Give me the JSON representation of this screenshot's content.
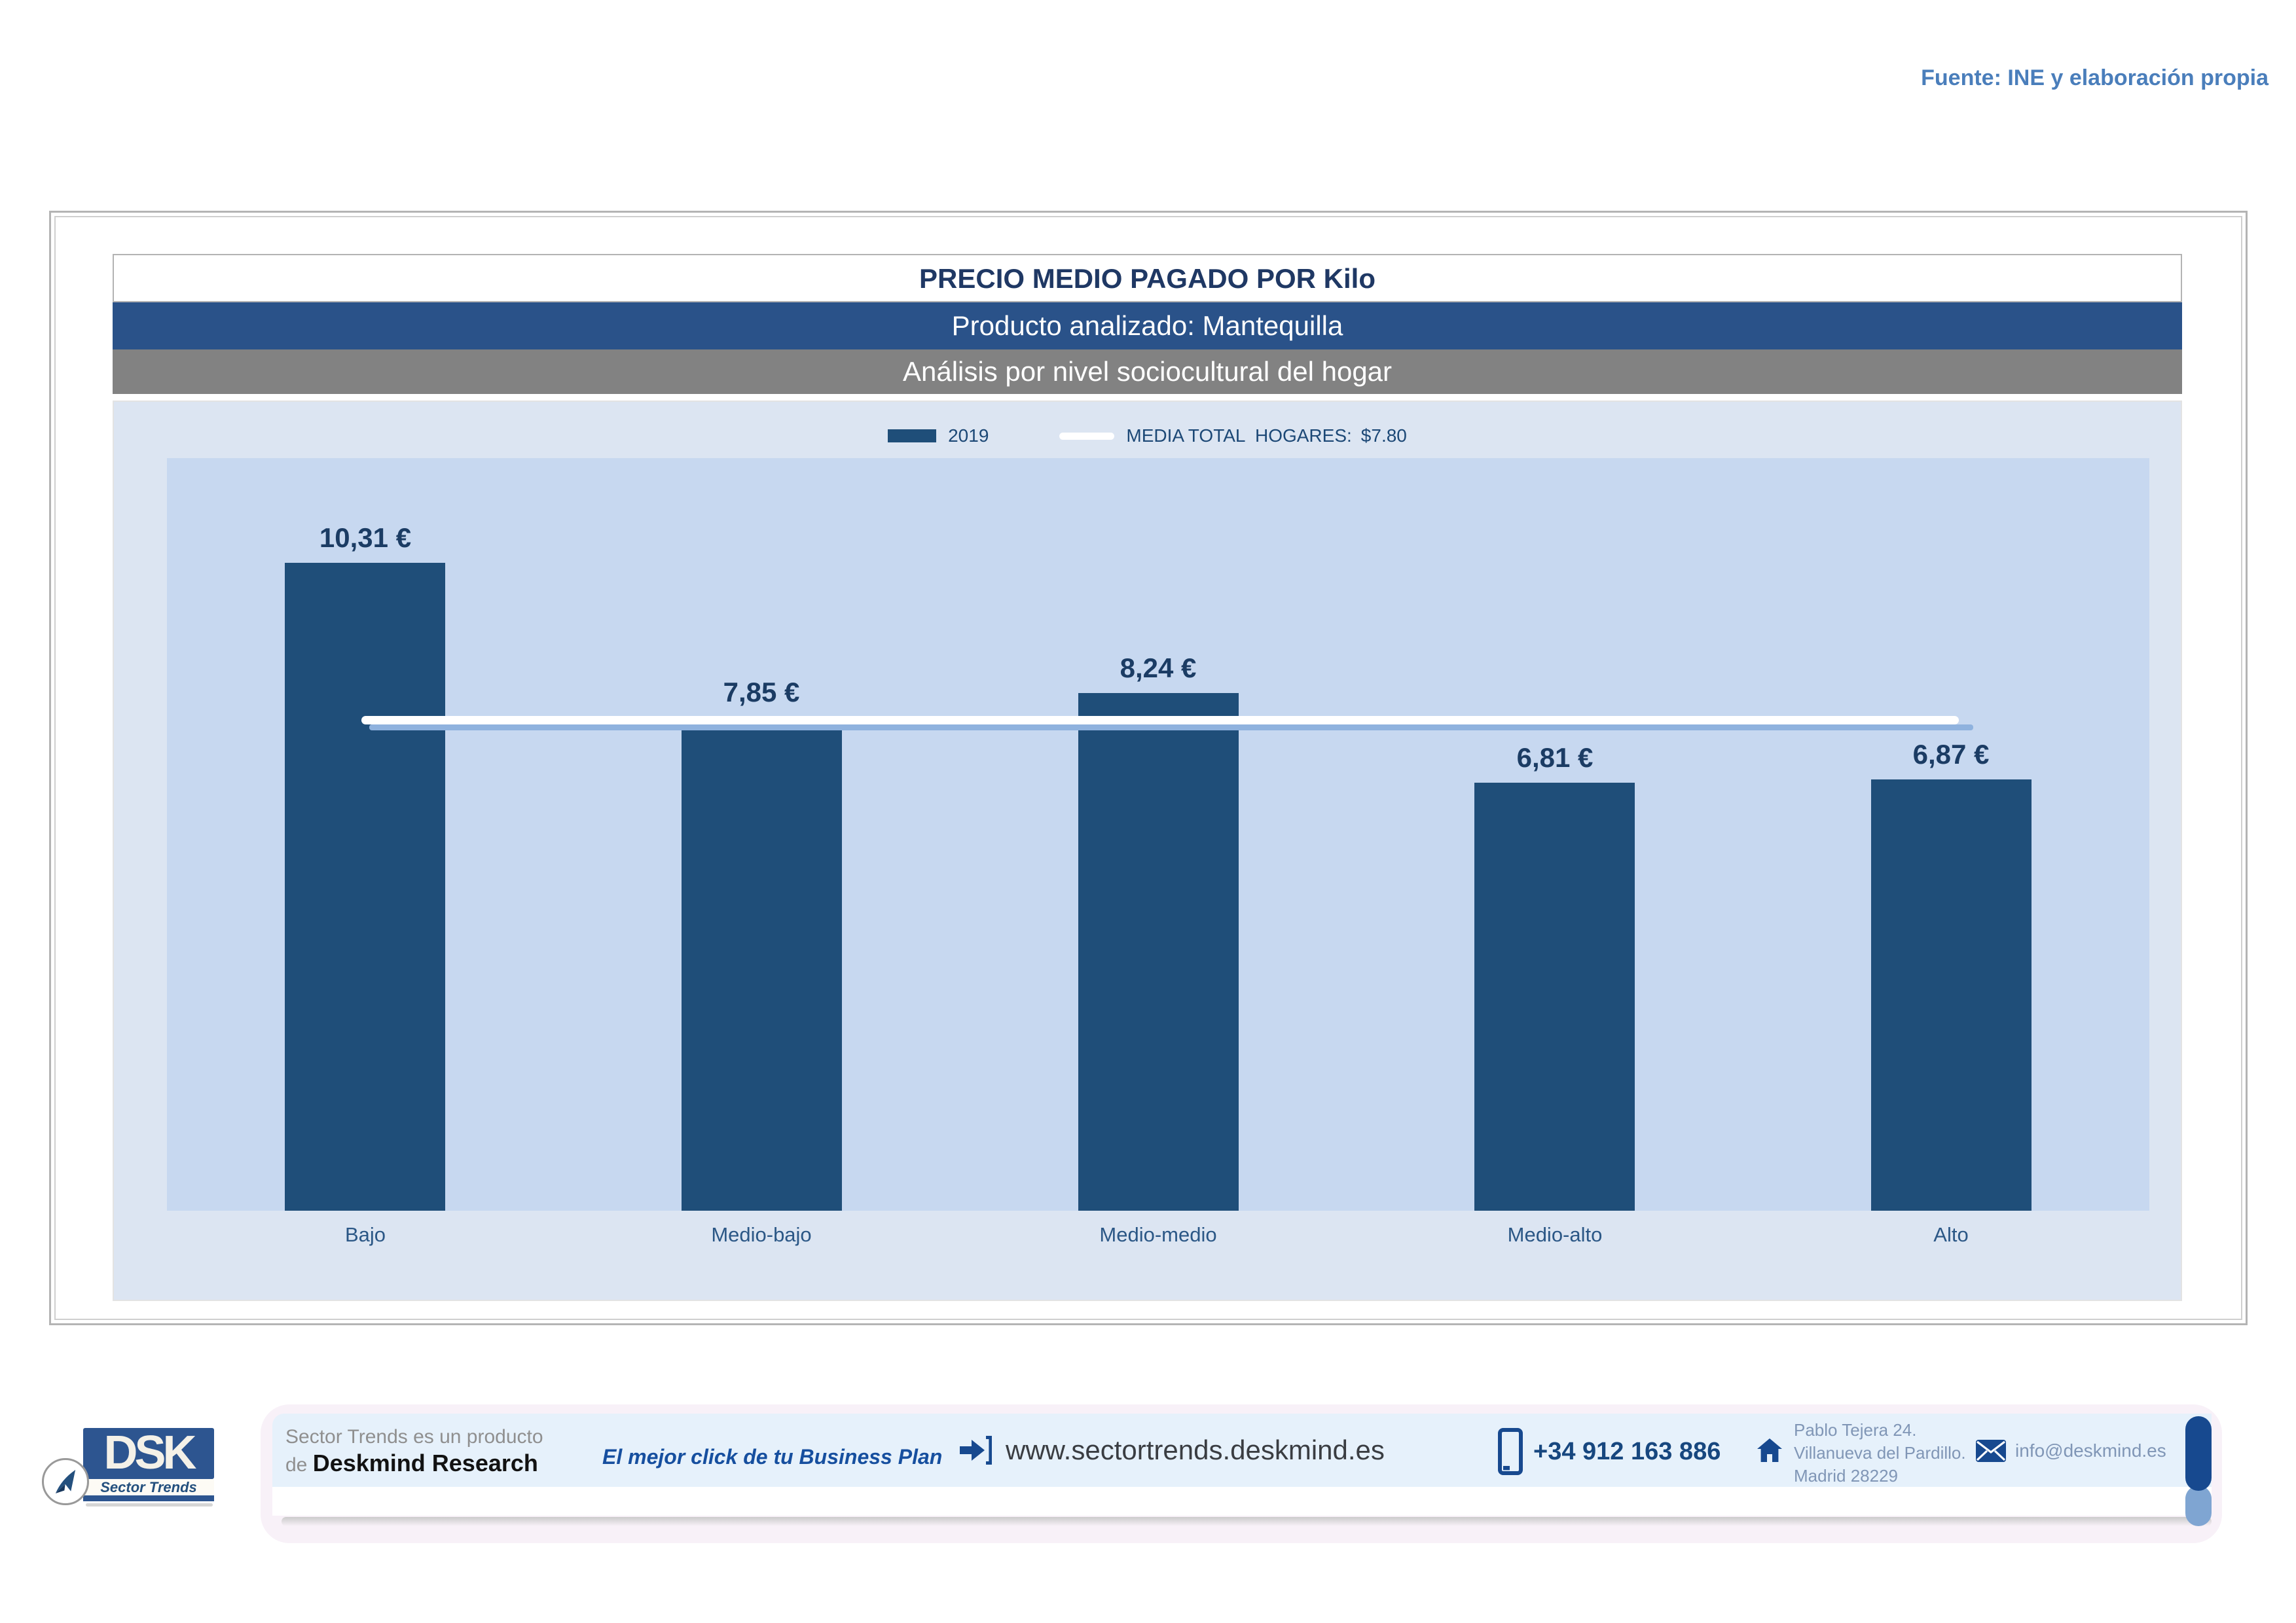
{
  "source_note": "Fuente: INE y elaboración propia",
  "header": {
    "title": "PRECIO MEDIO PAGADO POR Kilo",
    "product_line": "Producto analizado: Mantequilla",
    "analysis_line": "Análisis por nivel sociocultural del hogar"
  },
  "legend": {
    "series_label": "2019",
    "media_label": "MEDIA TOTAL  HOGARES:",
    "media_value": "$7.80"
  },
  "chart_data": {
    "type": "bar",
    "title": "PRECIO MEDIO PAGADO POR Kilo",
    "subtitle_product": "Producto analizado: Mantequilla",
    "subtitle_analysis": "Análisis por nivel sociocultural del hogar",
    "categories": [
      "Bajo",
      "Medio-bajo",
      "Medio-medio",
      "Medio-alto",
      "Alto"
    ],
    "series": [
      {
        "name": "2019",
        "values": [
          10.31,
          7.85,
          8.24,
          6.81,
          6.87
        ]
      }
    ],
    "value_labels": [
      "10,31 €",
      "7,85 €",
      "8,24 €",
      "6,81 €",
      "6,87 €"
    ],
    "average_line": {
      "label": "MEDIA TOTAL HOGARES",
      "value": 7.8,
      "display": "$7.80"
    },
    "xlabel": "",
    "ylabel": "",
    "ylim": [
      0,
      11.98
    ],
    "grid": false,
    "legend_position": "top",
    "colors": {
      "bar": "#1F4E79",
      "average_line": "#FFFFFF",
      "average_line_shadow": "#8FB2DE",
      "plot_bg": "#C7D8F0",
      "chart_bg": "#DCE5F2",
      "header_band_blue": "#2A5289",
      "header_band_gray": "#828282",
      "value_label_text": "#1B3C64"
    }
  },
  "footer": {
    "brand": {
      "logo_main": "DSK",
      "logo_sub": "Sector Trends"
    },
    "product_note_line1": "Sector Trends es un producto",
    "product_note_line2_prefix": "de ",
    "product_note_line2_bold": "Deskmind Research",
    "tagline": "El mejor click de tu Business Plan",
    "website": "www.sectortrends.deskmind.es",
    "phone": "+34 912 163 886",
    "address_line1": "Pablo Tejera 24.",
    "address_line2": "Villanueva del Pardillo.",
    "address_line3": "Madrid 28229",
    "email": "info@deskmind.es"
  }
}
